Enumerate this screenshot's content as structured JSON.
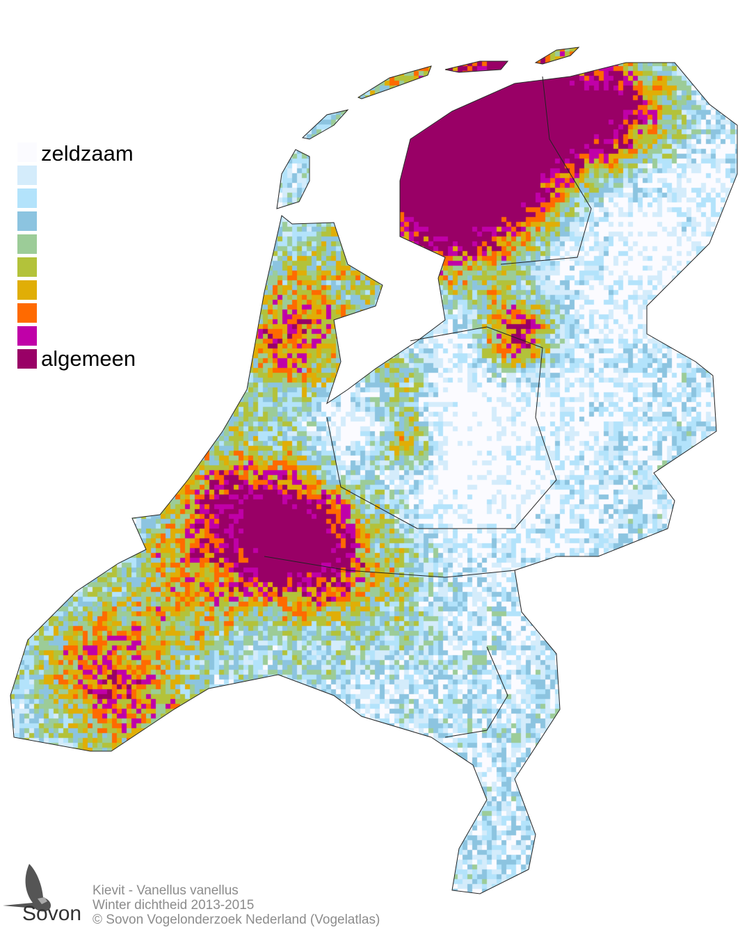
{
  "legend": {
    "top_label": "zeldzaam",
    "bottom_label": "algemeen",
    "colors": [
      "#fbfbff",
      "#d4ecfb",
      "#b3e3fb",
      "#8cc4e0",
      "#9ccc98",
      "#b3c23a",
      "#e0ae06",
      "#ff6a00",
      "#c000a8",
      "#990066"
    ]
  },
  "credits": {
    "line1": "Kievit - Vanellus vanellus",
    "line2": "Winter dichtheid 2013-2015",
    "line3": "© Sovon Vogelonderzoek Nederland (Vogelatlas)"
  },
  "logo": {
    "text": "Sovon"
  }
}
